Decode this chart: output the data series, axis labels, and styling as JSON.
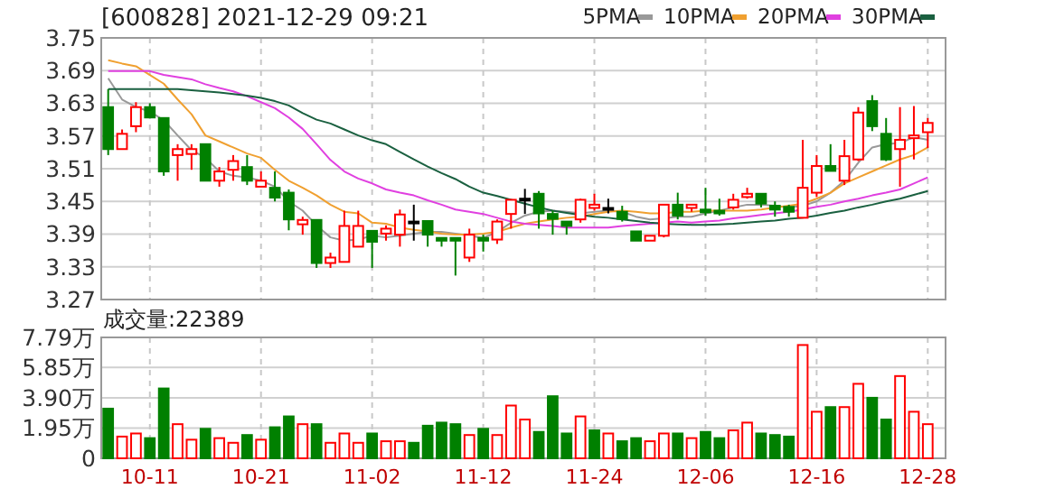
{
  "chart_data": [
    {
      "type": "candlestick",
      "title": "[600828] 2021-12-29 09:21",
      "categories": [
        null,
        null,
        null,
        null,
        null,
        null,
        null,
        null,
        null,
        null,
        null,
        null,
        null,
        null,
        null,
        null,
        null,
        null,
        null,
        null,
        null,
        null,
        null,
        null,
        null,
        null,
        null,
        null,
        null,
        null,
        null,
        null,
        null,
        null,
        null,
        null,
        null,
        null,
        null,
        null,
        null,
        null,
        null,
        null,
        null,
        null,
        null,
        null,
        null,
        null,
        null,
        null,
        null,
        null,
        null,
        null,
        null,
        null,
        null,
        null
      ],
      "ohlc": [
        [
          3.623,
          3.656,
          3.535,
          3.546
        ],
        [
          3.546,
          3.582,
          3.546,
          3.574
        ],
        [
          3.588,
          3.632,
          3.577,
          3.623
        ],
        [
          3.623,
          3.63,
          3.604,
          3.604
        ],
        [
          3.603,
          3.603,
          3.497,
          3.505
        ],
        [
          3.535,
          3.555,
          3.488,
          3.546
        ],
        [
          3.537,
          3.555,
          3.508,
          3.546
        ],
        [
          3.555,
          3.555,
          3.488,
          3.488
        ],
        [
          3.488,
          3.513,
          3.477,
          3.505
        ],
        [
          3.508,
          3.535,
          3.488,
          3.524
        ],
        [
          3.513,
          3.535,
          3.48,
          3.488
        ],
        [
          3.477,
          3.505,
          3.477,
          3.488
        ],
        [
          3.475,
          3.505,
          3.45,
          3.457
        ],
        [
          3.466,
          3.472,
          3.397,
          3.417
        ],
        [
          3.408,
          3.422,
          3.389,
          3.416
        ],
        [
          3.416,
          3.416,
          3.328,
          3.337
        ],
        [
          3.337,
          3.356,
          3.328,
          3.347
        ],
        [
          3.339,
          3.433,
          3.339,
          3.405
        ],
        [
          3.367,
          3.433,
          3.367,
          3.405
        ],
        [
          3.396,
          3.396,
          3.328,
          3.376
        ],
        [
          3.391,
          3.406,
          3.378,
          3.4
        ],
        [
          3.389,
          3.435,
          3.367,
          3.426
        ],
        [
          3.413,
          3.444,
          3.378,
          3.413
        ],
        [
          3.414,
          3.414,
          3.367,
          3.389
        ],
        [
          3.383,
          3.383,
          3.367,
          3.378
        ],
        [
          3.383,
          3.383,
          3.314,
          3.378
        ],
        [
          3.347,
          3.4,
          3.339,
          3.389
        ],
        [
          3.383,
          3.389,
          3.358,
          3.378
        ],
        [
          3.38,
          3.417,
          3.372,
          3.413
        ],
        [
          3.427,
          3.453,
          3.4,
          3.453
        ],
        [
          3.455,
          3.473,
          3.427,
          3.455
        ],
        [
          3.464,
          3.469,
          3.4,
          3.428
        ],
        [
          3.427,
          3.433,
          3.389,
          3.418
        ],
        [
          3.413,
          3.413,
          3.389,
          3.405
        ],
        [
          3.417,
          3.455,
          3.411,
          3.453
        ],
        [
          3.438,
          3.464,
          3.433,
          3.444
        ],
        [
          3.438,
          3.455,
          3.428,
          3.438
        ],
        [
          3.431,
          3.442,
          3.413,
          3.418
        ],
        [
          3.395,
          3.395,
          3.378,
          3.378
        ],
        [
          3.378,
          3.387,
          3.378,
          3.387
        ],
        [
          3.387,
          3.444,
          3.384,
          3.444
        ],
        [
          3.444,
          3.466,
          3.417,
          3.424
        ],
        [
          3.438,
          3.444,
          3.431,
          3.444
        ],
        [
          3.435,
          3.475,
          3.424,
          3.43
        ],
        [
          3.433,
          3.455,
          3.424,
          3.428
        ],
        [
          3.439,
          3.464,
          3.435,
          3.453
        ],
        [
          3.458,
          3.475,
          3.455,
          3.464
        ],
        [
          3.464,
          3.464,
          3.439,
          3.446
        ],
        [
          3.442,
          3.45,
          3.422,
          3.435
        ],
        [
          3.44,
          3.444,
          3.422,
          3.431
        ],
        [
          3.42,
          3.563,
          3.42,
          3.475
        ],
        [
          3.466,
          3.535,
          3.458,
          3.515
        ],
        [
          3.515,
          3.555,
          3.506,
          3.506
        ],
        [
          3.488,
          3.563,
          3.48,
          3.533
        ],
        [
          3.527,
          3.623,
          3.524,
          3.613
        ],
        [
          3.634,
          3.645,
          3.579,
          3.588
        ],
        [
          3.574,
          3.603,
          3.524,
          3.527
        ],
        [
          3.546,
          3.623,
          3.477,
          3.563
        ],
        [
          3.566,
          3.625,
          3.527,
          3.571
        ],
        [
          3.577,
          3.603,
          3.548,
          3.594
        ]
      ],
      "colors": [
        "#008000",
        "#ff0000",
        "#ff0000",
        "#008000",
        "#008000",
        "#ff0000",
        "#ff0000",
        "#008000",
        "#ff0000",
        "#ff0000",
        "#008000",
        "#ff0000",
        "#008000",
        "#008000",
        "#ff0000",
        "#008000",
        "#ff0000",
        "#ff0000",
        "#ff0000",
        "#008000",
        "#ff0000",
        "#ff0000",
        "#000000",
        "#008000",
        "#008000",
        "#008000",
        "#ff0000",
        "#008000",
        "#ff0000",
        "#ff0000",
        "#000000",
        "#008000",
        "#008000",
        "#008000",
        "#ff0000",
        "#ff0000",
        "#000000",
        "#008000",
        "#008000",
        "#ff0000",
        "#ff0000",
        "#008000",
        "#ff0000",
        "#008000",
        "#008000",
        "#ff0000",
        "#ff0000",
        "#008000",
        "#008000",
        "#008000",
        "#ff0000",
        "#ff0000",
        "#008000",
        "#ff0000",
        "#ff0000",
        "#008000",
        "#008000",
        "#ff0000",
        "#ff0000",
        "#ff0000"
      ],
      "series": [
        {
          "name": "5PMA",
          "type": "line",
          "color": "#999999",
          "values": [
            3.676,
            3.637,
            3.623,
            3.615,
            3.599,
            3.571,
            3.544,
            3.53,
            3.505,
            3.497,
            3.494,
            3.488,
            3.477,
            3.45,
            3.433,
            3.406,
            3.384,
            3.378,
            3.38,
            3.387,
            3.384,
            3.387,
            3.391,
            3.394,
            3.394,
            3.391,
            3.387,
            3.383,
            3.394,
            3.411,
            3.424,
            3.431,
            3.433,
            3.431,
            3.428,
            3.431,
            3.433,
            3.431,
            3.422,
            3.417,
            3.419,
            3.422,
            3.422,
            3.428,
            3.433,
            3.439,
            3.444,
            3.444,
            3.442,
            3.439,
            3.442,
            3.45,
            3.466,
            3.488,
            3.521,
            3.549,
            3.555,
            3.557,
            3.568,
            3.563
          ]
        },
        {
          "name": "10PMA",
          "type": "line",
          "color": "#f0a030",
          "values": [
            3.709,
            3.703,
            3.698,
            3.682,
            3.666,
            3.637,
            3.61,
            3.571,
            3.56,
            3.549,
            3.538,
            3.53,
            3.508,
            3.488,
            3.475,
            3.461,
            3.444,
            3.431,
            3.428,
            3.411,
            3.409,
            3.402,
            3.398,
            3.395,
            3.391,
            3.389,
            3.389,
            3.391,
            3.394,
            3.402,
            3.409,
            3.413,
            3.417,
            3.42,
            3.422,
            3.427,
            3.431,
            3.433,
            3.431,
            3.428,
            3.428,
            3.431,
            3.431,
            3.433,
            3.433,
            3.433,
            3.433,
            3.435,
            3.439,
            3.442,
            3.446,
            3.455,
            3.466,
            3.483,
            3.494,
            3.505,
            3.516,
            3.527,
            3.535,
            3.549
          ]
        },
        {
          "name": "20PMA",
          "type": "line",
          "color": "#e040e0",
          "values": [
            3.689,
            3.689,
            3.689,
            3.689,
            3.682,
            3.678,
            3.674,
            3.665,
            3.658,
            3.652,
            3.643,
            3.632,
            3.621,
            3.604,
            3.583,
            3.555,
            3.526,
            3.505,
            3.492,
            3.483,
            3.472,
            3.466,
            3.461,
            3.452,
            3.444,
            3.435,
            3.431,
            3.427,
            3.42,
            3.413,
            3.409,
            3.407,
            3.405,
            3.402,
            3.402,
            3.402,
            3.402,
            3.405,
            3.407,
            3.409,
            3.411,
            3.413,
            3.411,
            3.413,
            3.415,
            3.419,
            3.422,
            3.425,
            3.428,
            3.431,
            3.435,
            3.44,
            3.444,
            3.45,
            3.455,
            3.461,
            3.466,
            3.472,
            3.483,
            3.494
          ]
        },
        {
          "name": "30PMA",
          "type": "line",
          "color": "#1a6040",
          "values": [
            3.656,
            3.656,
            3.656,
            3.656,
            3.656,
            3.656,
            3.654,
            3.652,
            3.65,
            3.647,
            3.644,
            3.64,
            3.634,
            3.626,
            3.612,
            3.6,
            3.593,
            3.582,
            3.571,
            3.562,
            3.555,
            3.541,
            3.527,
            3.514,
            3.502,
            3.491,
            3.477,
            3.466,
            3.46,
            3.453,
            3.446,
            3.439,
            3.433,
            3.429,
            3.425,
            3.422,
            3.42,
            3.417,
            3.414,
            3.411,
            3.409,
            3.408,
            3.407,
            3.407,
            3.408,
            3.409,
            3.411,
            3.413,
            3.415,
            3.418,
            3.42,
            3.424,
            3.429,
            3.433,
            3.439,
            3.444,
            3.45,
            3.455,
            3.462,
            3.469
          ]
        }
      ],
      "ylim": [
        3.27,
        3.75
      ],
      "yticks": [
        3.27,
        3.33,
        3.39,
        3.45,
        3.51,
        3.57,
        3.63,
        3.69,
        3.75
      ],
      "grid": true,
      "legend": "top right",
      "tick_labels": "y"
    },
    {
      "type": "bar",
      "annotations": [
        "成交量:22389"
      ],
      "categories": [
        null,
        null,
        null,
        "10-11",
        null,
        null,
        null,
        null,
        null,
        null,
        null,
        "10-21",
        null,
        null,
        null,
        null,
        null,
        null,
        null,
        "11-02",
        null,
        null,
        null,
        null,
        null,
        null,
        null,
        "11-12",
        null,
        null,
        null,
        null,
        null,
        null,
        null,
        "11-24",
        null,
        null,
        null,
        null,
        null,
        null,
        null,
        "12-06",
        null,
        null,
        null,
        null,
        null,
        null,
        null,
        "12-16",
        null,
        null,
        null,
        null,
        null,
        null,
        null,
        "12-28"
      ],
      "values": [
        3.2,
        1.4,
        1.6,
        1.3,
        4.5,
        2.2,
        1.2,
        1.9,
        1.3,
        1.0,
        1.5,
        1.2,
        2.0,
        2.7,
        2.2,
        2.2,
        1.0,
        1.6,
        1.0,
        1.6,
        1.1,
        1.1,
        1.0,
        2.1,
        2.3,
        2.2,
        1.5,
        1.9,
        1.5,
        3.4,
        2.5,
        1.7,
        4.0,
        1.6,
        2.7,
        1.8,
        1.6,
        1.1,
        1.3,
        1.1,
        1.6,
        1.6,
        1.3,
        1.7,
        1.3,
        1.8,
        2.3,
        1.6,
        1.5,
        1.4,
        7.3,
        3.0,
        3.3,
        3.3,
        4.8,
        3.9,
        2.5,
        5.3,
        3.0,
        2.2
      ],
      "colors": [
        "#008000",
        "#ff0000",
        "#ff0000",
        "#008000",
        "#008000",
        "#ff0000",
        "#ff0000",
        "#008000",
        "#ff0000",
        "#ff0000",
        "#008000",
        "#ff0000",
        "#008000",
        "#008000",
        "#ff0000",
        "#008000",
        "#ff0000",
        "#ff0000",
        "#ff0000",
        "#008000",
        "#ff0000",
        "#ff0000",
        "#008000",
        "#008000",
        "#008000",
        "#008000",
        "#ff0000",
        "#008000",
        "#ff0000",
        "#ff0000",
        "#ff0000",
        "#008000",
        "#008000",
        "#008000",
        "#ff0000",
        "#008000",
        "#ff0000",
        "#008000",
        "#008000",
        "#ff0000",
        "#ff0000",
        "#008000",
        "#ff0000",
        "#008000",
        "#008000",
        "#ff0000",
        "#ff0000",
        "#008000",
        "#008000",
        "#008000",
        "#ff0000",
        "#ff0000",
        "#008000",
        "#ff0000",
        "#ff0000",
        "#008000",
        "#008000",
        "#ff0000",
        "#ff0000",
        "#ff0000"
      ],
      "ylim": [
        0,
        7.79
      ],
      "yticks": [
        0,
        {
          "value": 1.95,
          "label": "1.95万"
        },
        {
          "value": 3.9,
          "label": "3.90万"
        },
        {
          "value": 5.85,
          "label": "5.85万"
        },
        {
          "value": 7.79,
          "label": "7.79万"
        }
      ],
      "grid": true
    }
  ]
}
